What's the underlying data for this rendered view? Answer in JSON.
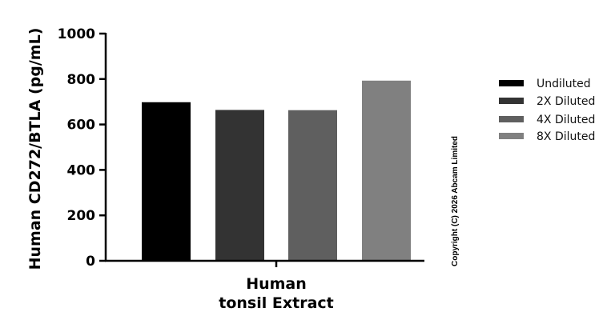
{
  "chart_data": {
    "type": "bar",
    "categories": [
      "Human tonsil Extract"
    ],
    "category_lines": [
      "Human",
      "tonsil Extract"
    ],
    "series": [
      {
        "name": "Undiluted",
        "values": [
          698
        ],
        "color": "#000000"
      },
      {
        "name": "2X Diluted",
        "values": [
          664
        ],
        "color": "#333333"
      },
      {
        "name": "4X Diluted",
        "values": [
          663
        ],
        "color": "#5f5f5f"
      },
      {
        "name": "8X Diluted",
        "values": [
          793
        ],
        "color": "#808080"
      }
    ],
    "ylabel": "Human CD272/BTLA (pg/mL)",
    "xlabel": "",
    "ylim": [
      0,
      1000
    ],
    "yticks": [
      0,
      200,
      400,
      600,
      800,
      1000
    ],
    "grid": false,
    "legend": "right",
    "watermark": "Copyright (C) 2026 Abcam Limited"
  }
}
